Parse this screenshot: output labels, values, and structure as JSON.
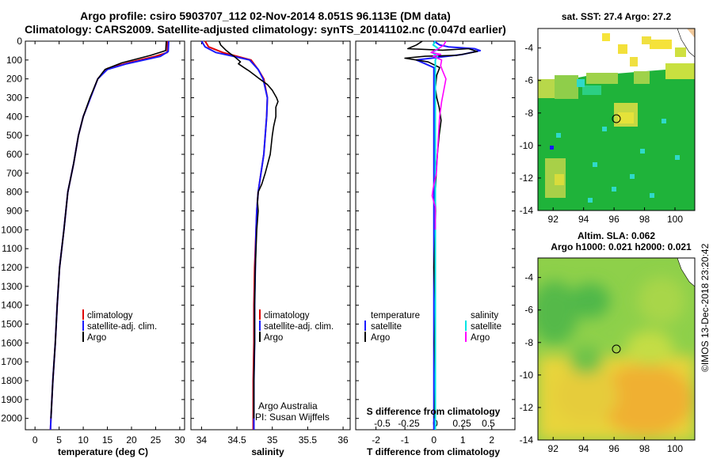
{
  "title_line1": "Argo profile: csiro 5903707_112 02-Nov-2014 8.051S 96.113E (DM data)",
  "title_line2": "Climatology: CARS2009. Satellite-adjusted climatology: synTS_20141102.nc (0.047d earlier)",
  "sst_title": "sat. SST: 27.4 Argo: 27.2",
  "sla_title1": "Altim. SLA: 0.062",
  "sla_title2": "Argo h1000: 0.021 h2000: 0.021",
  "credit": "©IMOS 13-Dec-2018 23:20:42",
  "colors": {
    "climatology": "#e00000",
    "satellite": "#1a1aff",
    "argo": "#000000",
    "argo_sal": "#ff00ff",
    "sat_sal": "#00e5e5"
  },
  "chart_data": [
    {
      "type": "line",
      "name": "temperature",
      "xlabel": "temperature (deg C)",
      "ylabel": "",
      "xlim": [
        -2,
        31
      ],
      "ylim": [
        2060,
        0
      ],
      "xticks": [
        0,
        5,
        10,
        15,
        20,
        25,
        30
      ],
      "yticks": [
        0,
        100,
        200,
        300,
        400,
        500,
        600,
        700,
        800,
        900,
        1000,
        1100,
        1200,
        1300,
        1400,
        1500,
        1600,
        1700,
        1800,
        1900,
        2000
      ],
      "legend": [
        "climatology",
        "satellite-adj. clim.",
        "Argo"
      ],
      "series": [
        {
          "name": "climatology",
          "color": "#e00000",
          "points": [
            [
              27.5,
              0
            ],
            [
              27.4,
              60
            ],
            [
              25,
              80
            ],
            [
              20,
              110
            ],
            [
              15,
              145
            ],
            [
              13,
              200
            ],
            [
              11.5,
              300
            ],
            [
              10,
              400
            ],
            [
              9,
              500
            ],
            [
              8,
              650
            ],
            [
              6.8,
              800
            ],
            [
              6,
              1000
            ],
            [
              5.1,
              1200
            ],
            [
              4.6,
              1400
            ],
            [
              4.2,
              1600
            ],
            [
              3.7,
              1800
            ],
            [
              3.3,
              2000
            ],
            [
              3.2,
              2060
            ]
          ]
        },
        {
          "name": "satellite-adj. clim.",
          "color": "#1a1aff",
          "points": [
            [
              27.7,
              0
            ],
            [
              27.6,
              55
            ],
            [
              26,
              80
            ],
            [
              19,
              120
            ],
            [
              15,
              150
            ],
            [
              13,
              200
            ],
            [
              11.5,
              300
            ],
            [
              10,
              400
            ],
            [
              9,
              500
            ],
            [
              8,
              650
            ],
            [
              6.8,
              800
            ],
            [
              6,
              1000
            ],
            [
              5.1,
              1200
            ],
            [
              4.6,
              1400
            ],
            [
              4.2,
              1600
            ],
            [
              3.7,
              1800
            ],
            [
              3.3,
              2000
            ],
            [
              3.2,
              2060
            ]
          ]
        },
        {
          "name": "Argo",
          "color": "#000000",
          "points": [
            [
              27.2,
              0
            ],
            [
              27.1,
              50
            ],
            [
              24,
              75
            ],
            [
              18,
              115
            ],
            [
              14.5,
              150
            ],
            [
              13,
              200
            ],
            [
              11.4,
              300
            ],
            [
              10,
              400
            ],
            [
              9,
              500
            ],
            [
              8,
              650
            ],
            [
              6.8,
              800
            ],
            [
              6,
              1000
            ],
            [
              5.1,
              1200
            ],
            [
              4.6,
              1400
            ],
            [
              4.2,
              1600
            ],
            [
              3.7,
              1800
            ],
            [
              3.3,
              2000
            ]
          ]
        }
      ]
    },
    {
      "type": "line",
      "name": "salinity",
      "xlabel": "salinity",
      "xlim": [
        33.85,
        36.1
      ],
      "ylim": [
        2060,
        0
      ],
      "xticks": [
        34,
        34.5,
        35,
        35.5,
        36
      ],
      "legend": [
        "climatology",
        "satellite-adj. clim.",
        "Argo"
      ],
      "annotations": [
        "Argo Australia",
        "PI: Susan Wijffels"
      ],
      "series": [
        {
          "name": "climatology",
          "color": "#e00000",
          "points": [
            [
              34.05,
              0
            ],
            [
              34.1,
              30
            ],
            [
              34.3,
              60
            ],
            [
              34.5,
              80
            ],
            [
              34.7,
              100
            ],
            [
              34.8,
              150
            ],
            [
              34.88,
              200
            ],
            [
              34.93,
              300
            ],
            [
              34.92,
              400
            ],
            [
              34.9,
              500
            ],
            [
              34.88,
              600
            ],
            [
              34.84,
              700
            ],
            [
              34.8,
              800
            ],
            [
              34.78,
              900
            ],
            [
              34.77,
              1000
            ],
            [
              34.75,
              1200
            ],
            [
              34.74,
              1400
            ],
            [
              34.74,
              1600
            ],
            [
              34.73,
              1800
            ],
            [
              34.73,
              2000
            ],
            [
              34.73,
              2060
            ]
          ]
        },
        {
          "name": "satellite-adj. clim.",
          "color": "#1a1aff",
          "points": [
            [
              34.0,
              0
            ],
            [
              34.05,
              30
            ],
            [
              34.2,
              60
            ],
            [
              34.45,
              80
            ],
            [
              34.68,
              100
            ],
            [
              34.8,
              150
            ],
            [
              34.87,
              200
            ],
            [
              34.93,
              300
            ],
            [
              34.92,
              400
            ],
            [
              34.9,
              500
            ],
            [
              34.88,
              600
            ],
            [
              34.84,
              700
            ],
            [
              34.8,
              800
            ],
            [
              34.78,
              900
            ],
            [
              34.77,
              1000
            ],
            [
              34.76,
              1200
            ],
            [
              34.75,
              1400
            ],
            [
              34.75,
              1600
            ],
            [
              34.74,
              1800
            ],
            [
              34.74,
              2000
            ],
            [
              34.74,
              2060
            ]
          ]
        },
        {
          "name": "Argo",
          "color": "#000000",
          "points": [
            [
              34.25,
              0
            ],
            [
              34.27,
              20
            ],
            [
              34.35,
              50
            ],
            [
              34.42,
              70
            ],
            [
              34.46,
              80
            ],
            [
              34.52,
              100
            ],
            [
              34.55,
              110
            ],
            [
              34.52,
              120
            ],
            [
              34.6,
              140
            ],
            [
              34.68,
              160
            ],
            [
              34.75,
              180
            ],
            [
              34.82,
              200
            ],
            [
              34.93,
              230
            ],
            [
              35.0,
              260
            ],
            [
              35.06,
              300
            ],
            [
              35.08,
              320
            ],
            [
              35.05,
              350
            ],
            [
              35.05,
              400
            ],
            [
              35.02,
              450
            ],
            [
              35.0,
              500
            ],
            [
              34.97,
              600
            ],
            [
              34.9,
              700
            ],
            [
              34.85,
              760
            ],
            [
              34.8,
              800
            ],
            [
              34.79,
              850
            ],
            [
              34.8,
              900
            ],
            [
              34.78,
              1000
            ],
            [
              34.76,
              1200
            ],
            [
              34.75,
              1400
            ],
            [
              34.75,
              1600
            ],
            [
              34.74,
              1800
            ],
            [
              34.74,
              2000
            ]
          ]
        }
      ]
    },
    {
      "type": "line",
      "name": "difference",
      "xlabel": "T difference from climatology",
      "xlabel2": "S difference from climatology",
      "xlim": [
        -2.7,
        2.8
      ],
      "ylim": [
        2060,
        0
      ],
      "xticks": [
        -2,
        -1,
        0,
        1,
        2
      ],
      "xtick_labels": [
        "-2",
        "-1",
        "0",
        "1",
        "2"
      ],
      "xticks2": [
        -0.5,
        -0.25,
        0,
        0.25,
        0.5
      ],
      "xtick_labels2": [
        "-0.5",
        "-0.25",
        "0",
        "0.25",
        "0.5"
      ],
      "legend_left_title": "temperature",
      "legend_right_title": "salinity",
      "legend_left": [
        "satellite",
        "Argo"
      ],
      "legend_right": [
        "satellite",
        "Argo"
      ],
      "series": [
        {
          "name": "T satellite",
          "color": "#1a1aff",
          "points": [
            [
              0,
              0
            ],
            [
              0.2,
              20
            ],
            [
              0.5,
              30
            ],
            [
              0.9,
              35
            ],
            [
              1.4,
              40
            ],
            [
              1.6,
              50
            ],
            [
              1.0,
              70
            ],
            [
              0.2,
              85
            ],
            [
              -0.6,
              100
            ],
            [
              -0.3,
              120
            ],
            [
              0,
              140
            ],
            [
              0,
              200
            ],
            [
              0,
              400
            ],
            [
              0,
              600
            ],
            [
              0,
              800
            ],
            [
              0,
              1000
            ],
            [
              0,
              1500
            ],
            [
              0,
              2060
            ]
          ]
        },
        {
          "name": "T Argo",
          "color": "#000000",
          "points": [
            [
              -0.4,
              0
            ],
            [
              -0.6,
              20
            ],
            [
              -0.9,
              40
            ],
            [
              0.3,
              48
            ],
            [
              1.2,
              40
            ],
            [
              1.5,
              55
            ],
            [
              0.8,
              75
            ],
            [
              -0.3,
              80
            ],
            [
              -1.0,
              90
            ],
            [
              -0.2,
              110
            ],
            [
              0.2,
              140
            ],
            [
              0.1,
              180
            ],
            [
              0.05,
              250
            ],
            [
              0.1,
              300
            ],
            [
              0.18,
              350
            ],
            [
              0.25,
              420
            ],
            [
              0.18,
              500
            ],
            [
              0.12,
              600
            ],
            [
              0.08,
              700
            ],
            [
              0.05,
              800
            ],
            [
              0.06,
              900
            ],
            [
              0.05,
              1000
            ],
            [
              0.0,
              1200
            ],
            [
              0.05,
              1400
            ],
            [
              0.02,
              1600
            ],
            [
              0.05,
              1800
            ],
            [
              0.02,
              2000
            ]
          ]
        },
        {
          "name": "S satellite",
          "color": "#00e5e5",
          "points": [
            [
              0,
              0
            ],
            [
              -0.02,
              20
            ],
            [
              0.03,
              40
            ],
            [
              -0.03,
              60
            ],
            [
              0.02,
              80
            ],
            [
              0,
              100
            ],
            [
              0,
              200
            ],
            [
              0,
              400
            ],
            [
              0,
              600
            ],
            [
              0,
              800
            ],
            [
              0,
              1000
            ],
            [
              0,
              1500
            ],
            [
              0,
              2060
            ]
          ]
        },
        {
          "name": "S Argo",
          "color": "#ff00ff",
          "points": [
            [
              0.1,
              0
            ],
            [
              0.08,
              20
            ],
            [
              0.03,
              40
            ],
            [
              -0.04,
              60
            ],
            [
              0.05,
              70
            ],
            [
              -0.02,
              80
            ],
            [
              0.06,
              100
            ],
            [
              0.05,
              130
            ],
            [
              0.07,
              160
            ],
            [
              0.1,
              200
            ],
            [
              0.08,
              260
            ],
            [
              0.06,
              320
            ],
            [
              0.04,
              400
            ],
            [
              0.03,
              500
            ],
            [
              0.02,
              600
            ],
            [
              0.01,
              700
            ],
            [
              -0.02,
              780
            ],
            [
              -0.03,
              820
            ],
            [
              0.0,
              880
            ],
            [
              0.0,
              1000
            ]
          ]
        }
      ]
    },
    {
      "type": "heatmap",
      "name": "sst_map",
      "title": "sat. SST: 27.4 Argo: 27.2",
      "xlim": [
        91,
        101.3
      ],
      "ylim": [
        -14,
        -2.8
      ],
      "xticks": [
        92,
        94,
        96,
        98,
        100
      ],
      "yticks": [
        -4,
        -6,
        -8,
        -10,
        -12,
        -14
      ],
      "marker": [
        96.113,
        -8.051
      ]
    },
    {
      "type": "heatmap",
      "name": "sla_map",
      "title": "Altim. SLA: 0.062",
      "xlim": [
        91,
        101.3
      ],
      "ylim": [
        -14,
        -2.8
      ],
      "xticks": [
        92,
        94,
        96,
        98,
        100
      ],
      "yticks": [
        -4,
        -6,
        -8,
        -10,
        -12,
        -14
      ],
      "marker": [
        96.113,
        -8.051
      ]
    }
  ]
}
